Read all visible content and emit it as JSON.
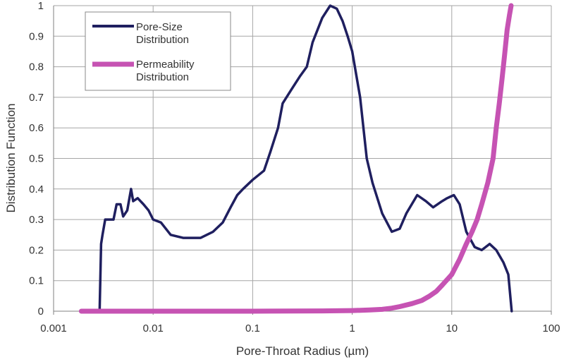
{
  "chart_data": {
    "type": "line",
    "title": "",
    "xlabel": "Pore-Throat Radius (µm)",
    "ylabel": "Distribution Function",
    "x_scale": "log",
    "xlim": [
      0.001,
      100
    ],
    "ylim": [
      0,
      1
    ],
    "x_ticks": [
      0.001,
      0.01,
      0.1,
      1,
      10,
      100
    ],
    "x_tick_labels": [
      "0.001",
      "0.01",
      "0.1",
      "1",
      "10",
      "100"
    ],
    "y_ticks": [
      0,
      0.1,
      0.2,
      0.3,
      0.4,
      0.5,
      0.6,
      0.7,
      0.8,
      0.9,
      1
    ],
    "y_tick_labels": [
      "0",
      "0.1",
      "0.2",
      "0.3",
      "0.4",
      "0.5",
      "0.6",
      "0.7",
      "0.8",
      "0.9",
      "1"
    ],
    "grid": true,
    "legend_position": "top-left",
    "series": [
      {
        "name": "Pore-Size Distribution",
        "color": "#1f1f5f",
        "points": [
          [
            0.0029,
            0
          ],
          [
            0.003,
            0.22
          ],
          [
            0.0031,
            0.25
          ],
          [
            0.0033,
            0.3
          ],
          [
            0.0036,
            0.3
          ],
          [
            0.004,
            0.3
          ],
          [
            0.0043,
            0.35
          ],
          [
            0.0047,
            0.35
          ],
          [
            0.005,
            0.31
          ],
          [
            0.0055,
            0.33
          ],
          [
            0.006,
            0.4
          ],
          [
            0.0063,
            0.36
          ],
          [
            0.007,
            0.37
          ],
          [
            0.008,
            0.35
          ],
          [
            0.009,
            0.33
          ],
          [
            0.01,
            0.3
          ],
          [
            0.012,
            0.29
          ],
          [
            0.015,
            0.25
          ],
          [
            0.02,
            0.24
          ],
          [
            0.025,
            0.24
          ],
          [
            0.03,
            0.24
          ],
          [
            0.04,
            0.26
          ],
          [
            0.05,
            0.29
          ],
          [
            0.06,
            0.34
          ],
          [
            0.07,
            0.38
          ],
          [
            0.08,
            0.4
          ],
          [
            0.1,
            0.43
          ],
          [
            0.13,
            0.46
          ],
          [
            0.15,
            0.52
          ],
          [
            0.18,
            0.6
          ],
          [
            0.2,
            0.68
          ],
          [
            0.25,
            0.73
          ],
          [
            0.3,
            0.77
          ],
          [
            0.35,
            0.8
          ],
          [
            0.4,
            0.88
          ],
          [
            0.5,
            0.96
          ],
          [
            0.6,
            1.0
          ],
          [
            0.7,
            0.99
          ],
          [
            0.8,
            0.95
          ],
          [
            0.9,
            0.9
          ],
          [
            1.0,
            0.85
          ],
          [
            1.2,
            0.7
          ],
          [
            1.4,
            0.5
          ],
          [
            1.6,
            0.42
          ],
          [
            2.0,
            0.32
          ],
          [
            2.5,
            0.26
          ],
          [
            3.0,
            0.27
          ],
          [
            3.5,
            0.32
          ],
          [
            4.5,
            0.38
          ],
          [
            5.5,
            0.36
          ],
          [
            6.5,
            0.34
          ],
          [
            8.0,
            0.36
          ],
          [
            9.0,
            0.37
          ],
          [
            10.5,
            0.38
          ],
          [
            12.0,
            0.35
          ],
          [
            14.0,
            0.26
          ],
          [
            17.0,
            0.21
          ],
          [
            20.0,
            0.2
          ],
          [
            24.0,
            0.22
          ],
          [
            28.0,
            0.2
          ],
          [
            33.0,
            0.16
          ],
          [
            37.0,
            0.12
          ],
          [
            40.0,
            0
          ]
        ]
      },
      {
        "name": "Permeability Distribution",
        "color": "#c653b3",
        "points": [
          [
            0.0019,
            0
          ],
          [
            0.01,
            0
          ],
          [
            0.1,
            0
          ],
          [
            0.5,
            0.001
          ],
          [
            1.0,
            0.002
          ],
          [
            1.5,
            0.004
          ],
          [
            2.0,
            0.006
          ],
          [
            2.5,
            0.01
          ],
          [
            3.0,
            0.015
          ],
          [
            4.0,
            0.025
          ],
          [
            5.0,
            0.035
          ],
          [
            6.0,
            0.05
          ],
          [
            7.0,
            0.065
          ],
          [
            8.0,
            0.085
          ],
          [
            10.0,
            0.12
          ],
          [
            12.0,
            0.17
          ],
          [
            14.0,
            0.22
          ],
          [
            16.0,
            0.26
          ],
          [
            18.0,
            0.3
          ],
          [
            20.0,
            0.35
          ],
          [
            23.0,
            0.42
          ],
          [
            26.0,
            0.5
          ],
          [
            28.0,
            0.6
          ],
          [
            30.0,
            0.68
          ],
          [
            32.0,
            0.76
          ],
          [
            34.0,
            0.84
          ],
          [
            36.0,
            0.92
          ],
          [
            38.0,
            0.97
          ],
          [
            39.5,
            1.0
          ]
        ]
      }
    ]
  }
}
